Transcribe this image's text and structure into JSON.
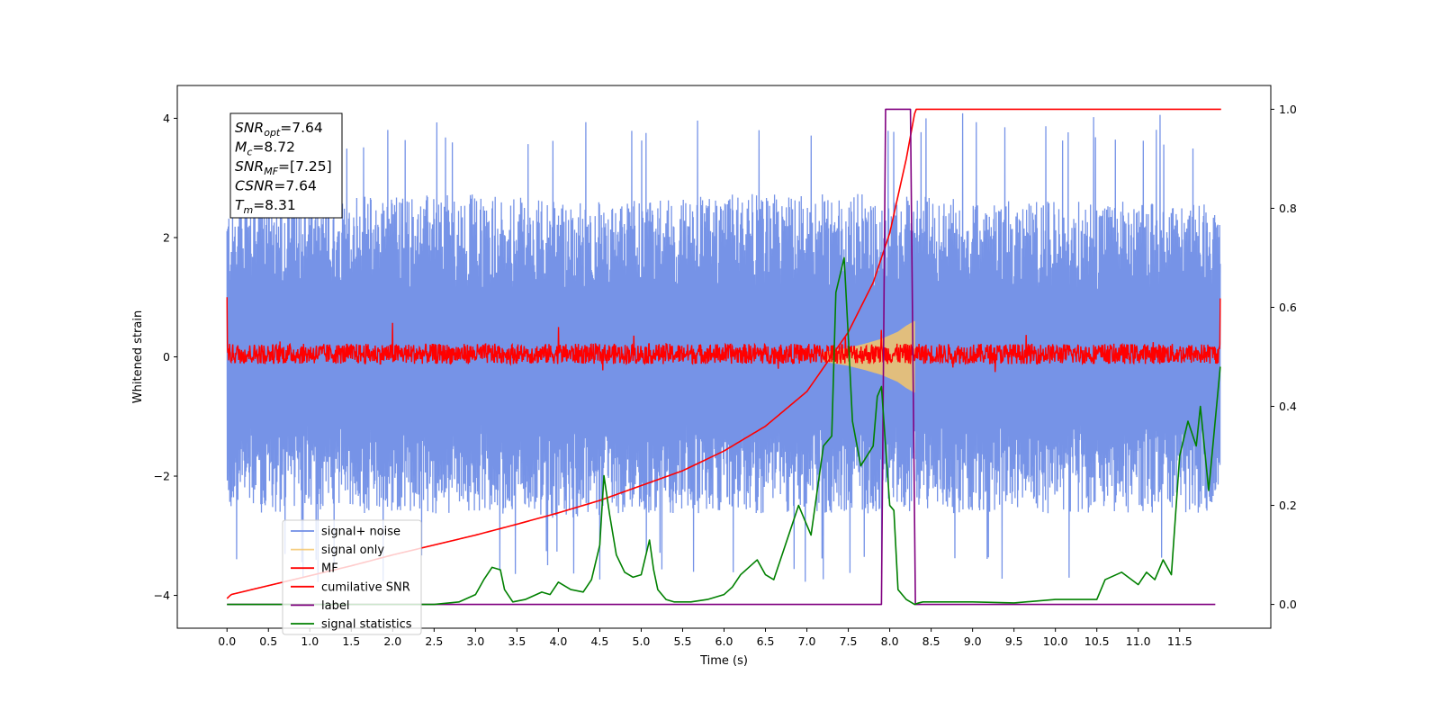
{
  "chart_data": {
    "type": "line",
    "title": "",
    "xlabel": "Time (s)",
    "ylabel": "Whitened strain",
    "ylabel_right": "",
    "xlim": [
      -0.6,
      12.6
    ],
    "ylim": [
      -4.55,
      4.55
    ],
    "ylim_right": [
      -0.048,
      1.048
    ],
    "x_ticks": [
      0.0,
      0.5,
      1.0,
      1.5,
      2.0,
      2.5,
      3.0,
      3.5,
      4.0,
      4.5,
      5.0,
      5.5,
      6.0,
      6.5,
      7.0,
      7.5,
      8.0,
      8.5,
      9.0,
      9.5,
      10.0,
      10.5,
      11.0,
      11.5
    ],
    "x_tick_labels": [
      "0.0",
      "0.5",
      "1.0",
      "1.5",
      "2.0",
      "2.5",
      "3.0",
      "3.5",
      "4.0",
      "4.5",
      "5.0",
      "5.5",
      "6.0",
      "6.5",
      "7.0",
      "7.5",
      "8.0",
      "8.5",
      "9.0",
      "9.5",
      "10.0",
      "10.5",
      "11.0",
      "11.5"
    ],
    "y_ticks": [
      -4,
      -2,
      0,
      2,
      4
    ],
    "y_tick_labels": [
      "−4",
      "−2",
      "0",
      "2",
      "4"
    ],
    "y_ticks_right": [
      0.0,
      0.2,
      0.4,
      0.6,
      0.8,
      1.0
    ],
    "y_tick_labels_right": [
      "0.0",
      "0.2",
      "0.4",
      "0.6",
      "0.8",
      "1.0"
    ],
    "grid": false,
    "legend_position": "lower-left",
    "annotation_box": {
      "position": "top-left",
      "lines": [
        {
          "symbol": "SNR",
          "sub": "opt",
          "value": "=7.64"
        },
        {
          "symbol": "M",
          "sub": "c",
          "value": "=8.72"
        },
        {
          "symbol": "SNR",
          "sub": "MF",
          "value": "=[7.25]"
        },
        {
          "symbol": "CSNR",
          "sub": "",
          "value": "=7.64"
        },
        {
          "symbol": "T",
          "sub": "m",
          "value": "=8.31"
        }
      ]
    },
    "series": [
      {
        "name": "signal+ noise",
        "axis": "left",
        "color": "#6f8de6",
        "kind": "noise-band",
        "x_range": [
          0.0,
          11.99
        ],
        "upper_envelope": {
          "x": [
            0.0,
            1.0,
            2.0,
            3.0,
            4.0,
            5.0,
            6.0,
            7.0,
            8.0,
            9.0,
            10.0,
            11.0,
            11.99
          ],
          "y": [
            2.5,
            2.6,
            2.6,
            2.6,
            2.5,
            2.5,
            2.6,
            2.6,
            2.6,
            2.5,
            2.5,
            2.5,
            2.5
          ]
        },
        "lower_envelope": {
          "x": [
            0.0,
            1.0,
            2.0,
            3.0,
            4.0,
            5.0,
            6.0,
            7.0,
            8.0,
            9.0,
            10.0,
            11.0,
            11.99
          ],
          "y": [
            -2.5,
            -2.5,
            -2.5,
            -2.5,
            -2.6,
            -2.5,
            -2.5,
            -2.5,
            -2.5,
            -2.5,
            -2.5,
            -2.5,
            -2.5
          ]
        },
        "peak_range": [
          -3.8,
          4.1
        ]
      },
      {
        "name": "signal only",
        "axis": "left",
        "color": "#f5c66a",
        "kind": "chirp",
        "x": [
          7.2,
          7.5,
          7.7,
          7.9,
          8.1,
          8.2,
          8.3
        ],
        "amplitude": [
          0.08,
          0.15,
          0.22,
          0.3,
          0.42,
          0.52,
          0.6
        ]
      },
      {
        "name": "MF",
        "axis": "left",
        "color": "#ff0000",
        "kind": "noise-band",
        "x_range": [
          0.0,
          11.99
        ],
        "center": 0.05,
        "half_width": 0.17,
        "spikes": [
          {
            "x": 0.0,
            "y": 1.0
          },
          {
            "x": 2.0,
            "y": 0.57
          },
          {
            "x": 4.0,
            "y": 0.5
          },
          {
            "x": 7.9,
            "y": 0.45
          },
          {
            "x": 11.99,
            "y": 0.98
          }
        ]
      },
      {
        "name": "cumilative SNR",
        "axis": "right",
        "color": "#ff0000",
        "x": [
          0.0,
          0.05,
          0.5,
          1.0,
          1.5,
          2.0,
          2.5,
          3.0,
          3.5,
          4.0,
          4.5,
          5.0,
          5.5,
          6.0,
          6.5,
          7.0,
          7.5,
          7.8,
          8.0,
          8.2,
          8.31,
          12.0
        ],
        "y": [
          0.012,
          0.02,
          0.038,
          0.058,
          0.078,
          0.1,
          0.12,
          0.14,
          0.162,
          0.185,
          0.21,
          0.24,
          0.27,
          0.31,
          0.36,
          0.43,
          0.55,
          0.65,
          0.75,
          0.9,
          1.0,
          1.0
        ]
      },
      {
        "name": "label",
        "axis": "right",
        "color": "#800080",
        "x": [
          0.0,
          7.9,
          7.95,
          8.25,
          8.31,
          11.93
        ],
        "y": [
          0.0,
          0.0,
          1.0,
          1.0,
          0.0,
          0.0
        ]
      },
      {
        "name": "signal statistics",
        "axis": "right",
        "color": "#008000",
        "x": [
          0.0,
          0.5,
          1.0,
          1.5,
          2.0,
          2.5,
          2.8,
          3.0,
          3.1,
          3.2,
          3.3,
          3.35,
          3.45,
          3.6,
          3.8,
          3.9,
          4.0,
          4.05,
          4.15,
          4.3,
          4.4,
          4.5,
          4.55,
          4.62,
          4.7,
          4.8,
          4.9,
          5.0,
          5.1,
          5.15,
          5.2,
          5.3,
          5.4,
          5.6,
          5.8,
          6.0,
          6.1,
          6.2,
          6.3,
          6.4,
          6.5,
          6.6,
          6.7,
          6.8,
          6.9,
          7.0,
          7.05,
          7.1,
          7.2,
          7.3,
          7.35,
          7.45,
          7.5,
          7.55,
          7.65,
          7.8,
          7.85,
          7.9,
          8.0,
          8.05,
          8.1,
          8.2,
          8.25,
          8.3,
          8.35,
          8.4,
          8.45,
          8.5,
          8.6,
          8.8,
          9.0,
          9.5,
          10.0,
          10.5,
          10.6,
          10.8,
          11.0,
          11.1,
          11.2,
          11.3,
          11.4,
          11.5,
          11.6,
          11.7,
          11.75,
          11.85,
          11.99
        ],
        "y": [
          0.0,
          0.0,
          0.0,
          0.0,
          0.0,
          0.0,
          0.005,
          0.02,
          0.05,
          0.075,
          0.07,
          0.03,
          0.005,
          0.01,
          0.025,
          0.02,
          0.045,
          0.04,
          0.03,
          0.025,
          0.05,
          0.12,
          0.26,
          0.18,
          0.1,
          0.065,
          0.055,
          0.06,
          0.13,
          0.07,
          0.03,
          0.01,
          0.005,
          0.005,
          0.01,
          0.02,
          0.035,
          0.06,
          0.075,
          0.09,
          0.06,
          0.05,
          0.1,
          0.15,
          0.2,
          0.16,
          0.14,
          0.2,
          0.32,
          0.34,
          0.63,
          0.7,
          0.54,
          0.37,
          0.28,
          0.32,
          0.42,
          0.44,
          0.2,
          0.19,
          0.03,
          0.01,
          0.005,
          0.0,
          0.003,
          0.005,
          0.005,
          0.005,
          0.005,
          0.005,
          0.005,
          0.003,
          0.01,
          0.01,
          0.05,
          0.065,
          0.04,
          0.065,
          0.05,
          0.09,
          0.06,
          0.3,
          0.37,
          0.32,
          0.4,
          0.23,
          0.48
        ]
      }
    ]
  }
}
